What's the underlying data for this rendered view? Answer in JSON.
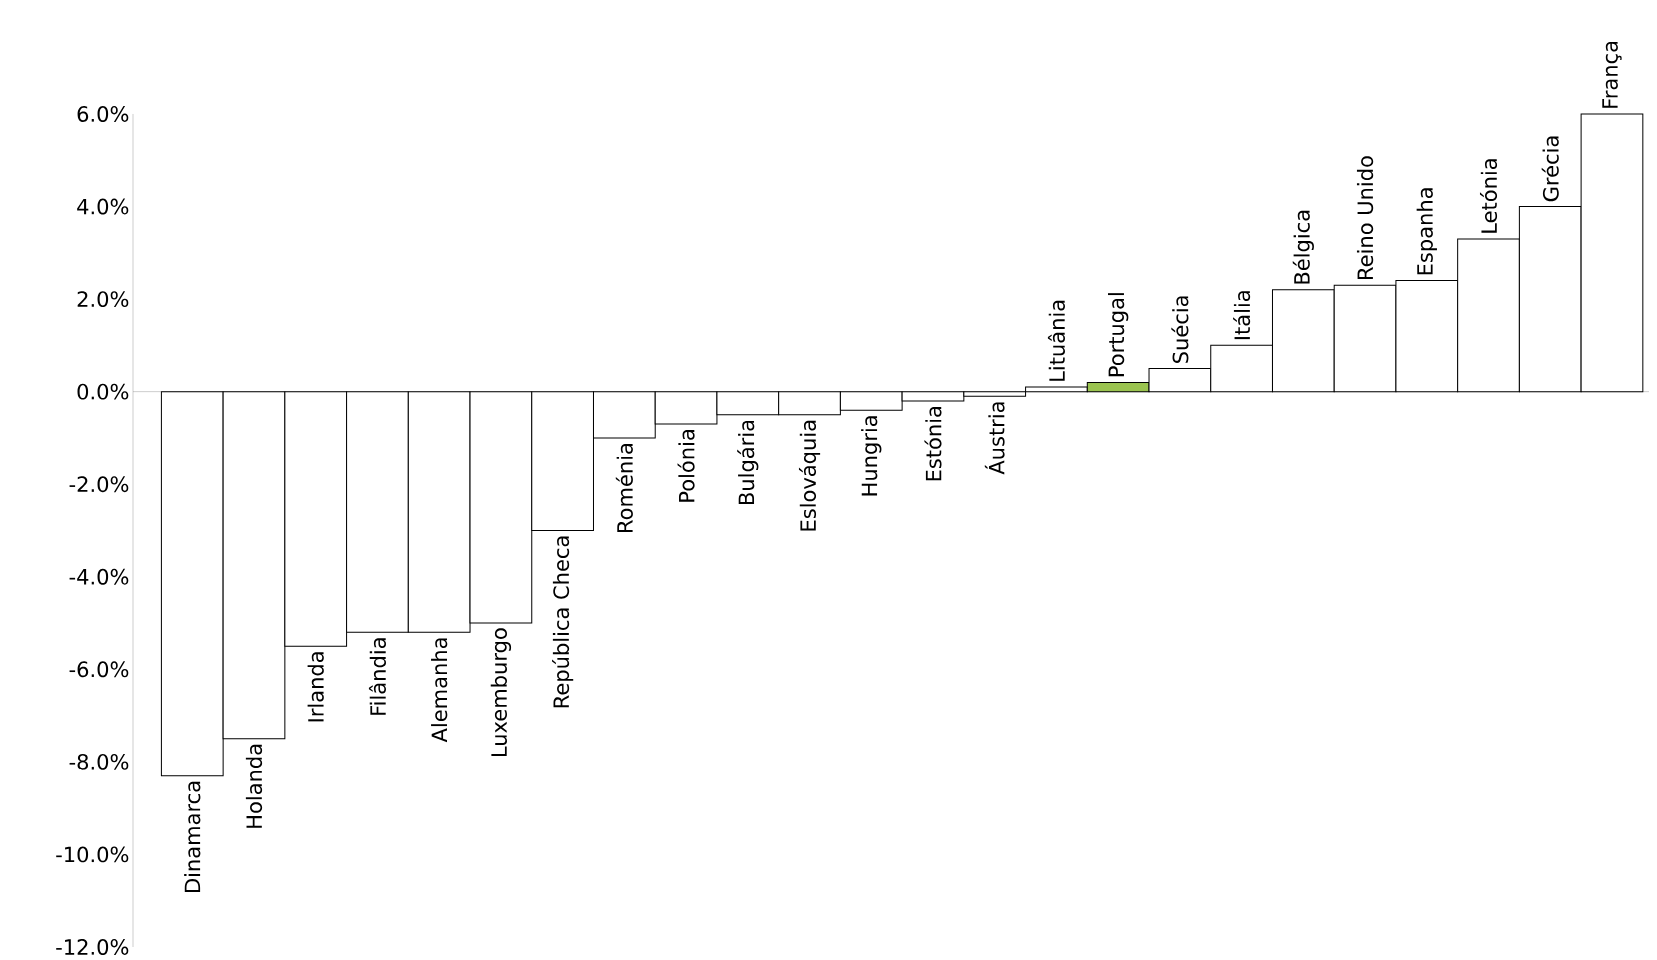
{
  "chart_data": {
    "type": "bar",
    "categories": [
      "Dinamarca",
      "Holanda",
      "Irlanda",
      "Filândia",
      "Alemanha",
      "Luxemburgo",
      "República Checa",
      "Roménia",
      "Polónia",
      "Bulgária",
      "Eslováquia",
      "Hungria",
      "Estónia",
      "Áustria",
      "Lituânia",
      "Portugal",
      "Suécia",
      "Itália",
      "Bélgica",
      "Reino Unido",
      "Espanha",
      "Letónia",
      "Grécia",
      "França"
    ],
    "values": [
      -8.3,
      -7.5,
      -5.5,
      -5.2,
      -5.2,
      -5.0,
      -3.0,
      -1.0,
      -0.7,
      -0.5,
      -0.5,
      -0.4,
      -0.2,
      -0.1,
      0.1,
      0.2,
      0.5,
      1.0,
      2.2,
      2.3,
      2.4,
      3.3,
      4.0,
      6.0
    ],
    "colors": [
      "#ffffff",
      "#ffffff",
      "#ffffff",
      "#ffffff",
      "#ffffff",
      "#ffffff",
      "#ffffff",
      "#ffffff",
      "#ffffff",
      "#ffffff",
      "#ffffff",
      "#ffffff",
      "#ffffff",
      "#ffffff",
      "#ffffff",
      "#9bc450",
      "#ffffff",
      "#ffffff",
      "#ffffff",
      "#ffffff",
      "#ffffff",
      "#ffffff",
      "#ffffff",
      "#ffffff"
    ],
    "ylim": [
      -12,
      6
    ],
    "yticks": [
      {
        "value": -12,
        "label": "-12.0%"
      },
      {
        "value": -10,
        "label": "-10.0%"
      },
      {
        "value": -8,
        "label": "-8.0%"
      },
      {
        "value": -6,
        "label": "-6.0%"
      },
      {
        "value": -4,
        "label": "-4.0%"
      },
      {
        "value": -2,
        "label": "-2.0%"
      },
      {
        "value": 0,
        "label": "0.0%"
      },
      {
        "value": 2,
        "label": "2.0%"
      },
      {
        "value": 4,
        "label": "4.0%"
      },
      {
        "value": 6,
        "label": "6.0%"
      }
    ],
    "grid": false
  }
}
